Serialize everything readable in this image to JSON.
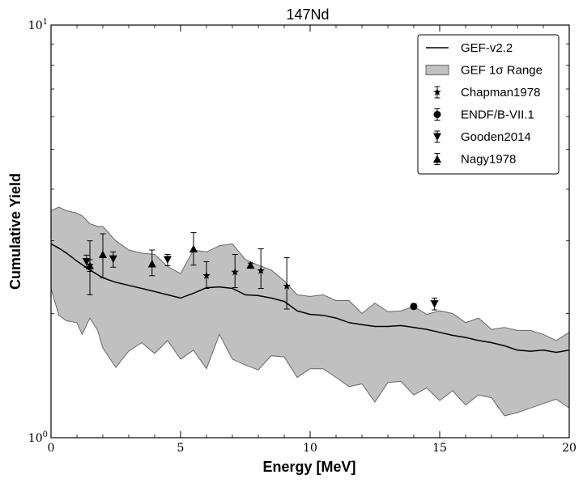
{
  "chart_data": {
    "type": "line",
    "title": "147Nd",
    "xlabel": "Energy [MeV]",
    "ylabel": "Cumulative Yield",
    "xlim": [
      0,
      20
    ],
    "ylim": [
      1,
      10
    ],
    "yscale": "log",
    "x_ticks": [
      0,
      5,
      10,
      15,
      20
    ],
    "y_ticks": [
      1,
      10
    ],
    "y_tick_labels": [
      "10^0",
      "10^1"
    ],
    "legend_position": "top-right",
    "legend": [
      {
        "label": "GEF-v2.2",
        "marker": "line"
      },
      {
        "label": "GEF 1σ Range",
        "marker": "band"
      },
      {
        "label": "Chapman1978",
        "marker": "star"
      },
      {
        "label": "ENDF/B-VII.1",
        "marker": "circle"
      },
      {
        "label": "Gooden2014",
        "marker": "triangle-down"
      },
      {
        "label": "Nagy1978",
        "marker": "triangle-up"
      }
    ],
    "colors": {
      "line": "#000000",
      "band_fill": "#c0c0c0",
      "band_edge": "#666666",
      "marker": "#000000"
    },
    "gef_line": {
      "x": [
        0,
        0.3,
        0.6,
        1.0,
        1.5,
        2.0,
        2.5,
        3.0,
        3.5,
        4.0,
        4.5,
        5.0,
        5.5,
        6.0,
        6.5,
        7.0,
        7.5,
        8.0,
        8.5,
        9.0,
        9.5,
        10.0,
        10.5,
        11.0,
        11.5,
        12.0,
        12.5,
        13.0,
        13.5,
        14.0,
        14.5,
        15.0,
        15.5,
        16.0,
        16.5,
        17.0,
        17.5,
        18.0,
        18.5,
        19.0,
        19.5,
        20.0
      ],
      "y": [
        2.95,
        2.88,
        2.8,
        2.68,
        2.55,
        2.44,
        2.38,
        2.34,
        2.3,
        2.26,
        2.22,
        2.18,
        2.24,
        2.31,
        2.32,
        2.3,
        2.22,
        2.21,
        2.18,
        2.14,
        2.03,
        1.99,
        1.98,
        1.95,
        1.9,
        1.88,
        1.86,
        1.86,
        1.87,
        1.85,
        1.83,
        1.8,
        1.77,
        1.75,
        1.72,
        1.7,
        1.67,
        1.63,
        1.62,
        1.63,
        1.61,
        1.63
      ]
    },
    "gef_band": {
      "x": [
        0,
        0.3,
        0.6,
        1.0,
        1.2,
        1.5,
        1.8,
        2.0,
        2.5,
        3.0,
        3.5,
        4.0,
        4.5,
        5.0,
        5.5,
        6.0,
        6.5,
        7.0,
        7.5,
        8.0,
        8.5,
        9.0,
        9.5,
        10.0,
        10.5,
        11.0,
        11.5,
        12.0,
        12.5,
        13.0,
        13.5,
        14.0,
        14.5,
        15.0,
        15.5,
        16.0,
        16.5,
        17.0,
        17.5,
        18.0,
        18.5,
        19.0,
        19.5,
        20.0
      ],
      "upper": [
        3.55,
        3.62,
        3.55,
        3.5,
        3.45,
        3.3,
        3.25,
        3.25,
        3.0,
        2.85,
        2.8,
        2.78,
        2.6,
        2.5,
        2.85,
        2.82,
        2.92,
        2.95,
        2.7,
        2.62,
        2.55,
        2.4,
        2.22,
        2.2,
        2.22,
        2.15,
        2.15,
        2.0,
        2.12,
        2.02,
        2.03,
        2.08,
        1.99,
        2.03,
        2.0,
        1.9,
        1.95,
        1.83,
        1.85,
        1.82,
        1.82,
        1.78,
        1.72,
        1.8
      ],
      "lower": [
        2.3,
        1.98,
        1.92,
        1.9,
        1.78,
        1.95,
        1.82,
        1.65,
        1.48,
        1.62,
        1.7,
        1.6,
        1.72,
        1.55,
        1.63,
        1.47,
        1.78,
        1.55,
        1.5,
        1.46,
        1.58,
        1.57,
        1.4,
        1.47,
        1.47,
        1.4,
        1.33,
        1.35,
        1.22,
        1.36,
        1.37,
        1.27,
        1.32,
        1.23,
        1.3,
        1.2,
        1.27,
        1.25,
        1.13,
        1.15,
        1.18,
        1.21,
        1.24,
        1.18
      ]
    },
    "series": [
      {
        "name": "Chapman1978",
        "marker": "star",
        "x": [
          1.5,
          6.0,
          7.1,
          8.1,
          9.1
        ],
        "y": [
          2.62,
          2.47,
          2.52,
          2.54,
          2.33
        ],
        "yerr_low": [
          0.4,
          0.17,
          0.21,
          0.24,
          0.28
        ],
        "yerr_high": [
          0.38,
          0.2,
          0.26,
          0.33,
          0.4
        ]
      },
      {
        "name": "ENDF/B-VII.1",
        "marker": "circle",
        "x": [
          14.0
        ],
        "y": [
          2.08
        ],
        "yerr_low": [
          0.03
        ],
        "yerr_high": [
          0.03
        ]
      },
      {
        "name": "Gooden2014",
        "marker": "triangle-down",
        "x": [
          1.37,
          2.4,
          4.5,
          14.8
        ],
        "y": [
          2.67,
          2.71,
          2.7,
          2.11
        ],
        "yerr_low": [
          0.08,
          0.12,
          0.09,
          0.07
        ],
        "yerr_high": [
          0.1,
          0.11,
          0.08,
          0.07
        ]
      },
      {
        "name": "Nagy1978",
        "marker": "triangle-up",
        "x": [
          1.5,
          2.0,
          3.9,
          5.5,
          7.7
        ],
        "y": [
          2.61,
          2.78,
          2.64,
          2.87,
          2.62
        ],
        "yerr_low": [
          0.08,
          0.34,
          0.17,
          0.25,
          0.04
        ],
        "yerr_high": [
          0.09,
          0.34,
          0.21,
          0.27,
          0.03
        ]
      }
    ]
  }
}
